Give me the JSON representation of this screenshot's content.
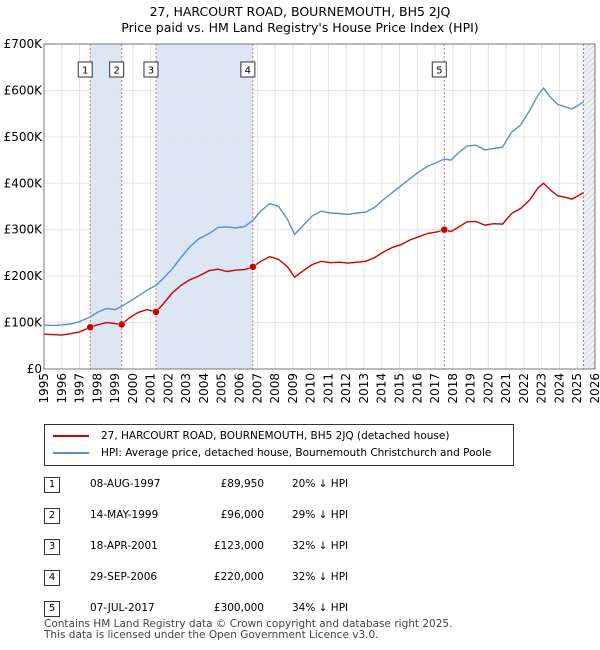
{
  "title_line1": "27, HARCOURT ROAD, BOURNEMOUTH, BH5 2JQ",
  "title_line2": "Price paid vs. HM Land Registry's House Price Index (HPI)",
  "colors": {
    "property": "#cc0000",
    "hpi": "#5b8fc7",
    "shade": "#dce6f5"
  },
  "chart_data": {
    "type": "line",
    "xlim": [
      1995,
      2026
    ],
    "ylim": [
      0,
      700000
    ],
    "y_ticks": [
      {
        "value": 0,
        "label": "£0"
      },
      {
        "value": 100000,
        "label": "£100K"
      },
      {
        "value": 200000,
        "label": "£200K"
      },
      {
        "value": 300000,
        "label": "£300K"
      },
      {
        "value": 400000,
        "label": "£400K"
      },
      {
        "value": 500000,
        "label": "£500K"
      },
      {
        "value": 600000,
        "label": "£600K"
      },
      {
        "value": 700000,
        "label": "£700K"
      }
    ],
    "x_ticks": [
      "1995",
      "1996",
      "1997",
      "1998",
      "1999",
      "2000",
      "2001",
      "2002",
      "2003",
      "2004",
      "2005",
      "2006",
      "2007",
      "2008",
      "2009",
      "2010",
      "2011",
      "2012",
      "2013",
      "2014",
      "2015",
      "2016",
      "2017",
      "2018",
      "2019",
      "2020",
      "2021",
      "2022",
      "2023",
      "2024",
      "2025",
      "2026"
    ],
    "data_end": 2025.35,
    "series": [
      {
        "name": "27, HARCOURT ROAD, BOURNEMOUTH, BH5 2JQ (detached house)",
        "key": "property",
        "points": [
          [
            1995.0,
            75000
          ],
          [
            1995.5,
            74000
          ],
          [
            1996.0,
            73000
          ],
          [
            1996.5,
            76000
          ],
          [
            1997.0,
            80000
          ],
          [
            1997.6,
            89950
          ],
          [
            1998.0,
            95000
          ],
          [
            1998.5,
            100000
          ],
          [
            1999.0,
            98000
          ],
          [
            1999.37,
            96000
          ],
          [
            1999.8,
            110000
          ],
          [
            2000.3,
            122000
          ],
          [
            2000.8,
            128000
          ],
          [
            2001.3,
            123000
          ],
          [
            2001.7,
            140000
          ],
          [
            2002.2,
            163000
          ],
          [
            2002.7,
            180000
          ],
          [
            2003.2,
            192000
          ],
          [
            2003.7,
            200000
          ],
          [
            2004.3,
            212000
          ],
          [
            2004.8,
            215000
          ],
          [
            2005.3,
            210000
          ],
          [
            2005.8,
            213000
          ],
          [
            2006.3,
            214000
          ],
          [
            2006.75,
            220000
          ],
          [
            2007.2,
            232000
          ],
          [
            2007.7,
            242000
          ],
          [
            2008.2,
            236000
          ],
          [
            2008.7,
            220000
          ],
          [
            2009.1,
            198000
          ],
          [
            2009.6,
            212000
          ],
          [
            2010.1,
            225000
          ],
          [
            2010.6,
            232000
          ],
          [
            2011.1,
            229000
          ],
          [
            2011.6,
            230000
          ],
          [
            2012.1,
            228000
          ],
          [
            2012.6,
            230000
          ],
          [
            2013.1,
            232000
          ],
          [
            2013.6,
            240000
          ],
          [
            2014.1,
            252000
          ],
          [
            2014.6,
            262000
          ],
          [
            2015.1,
            268000
          ],
          [
            2015.6,
            278000
          ],
          [
            2016.1,
            285000
          ],
          [
            2016.6,
            292000
          ],
          [
            2017.1,
            295000
          ],
          [
            2017.52,
            300000
          ],
          [
            2017.9,
            296000
          ],
          [
            2018.3,
            305000
          ],
          [
            2018.8,
            317000
          ],
          [
            2019.3,
            318000
          ],
          [
            2019.8,
            310000
          ],
          [
            2020.3,
            313000
          ],
          [
            2020.8,
            312000
          ],
          [
            2021.3,
            335000
          ],
          [
            2021.8,
            345000
          ],
          [
            2022.3,
            363000
          ],
          [
            2022.8,
            390000
          ],
          [
            2023.1,
            400000
          ],
          [
            2023.5,
            385000
          ],
          [
            2023.9,
            373000
          ],
          [
            2024.3,
            370000
          ],
          [
            2024.7,
            366000
          ],
          [
            2025.0,
            372000
          ],
          [
            2025.35,
            380000
          ]
        ]
      },
      {
        "name": "HPI: Average price, detached house, Bournemouth Christchurch and Poole",
        "key": "hpi",
        "points": [
          [
            1995.0,
            95000
          ],
          [
            1995.5,
            94000
          ],
          [
            1996.0,
            95000
          ],
          [
            1996.5,
            97000
          ],
          [
            1997.0,
            102000
          ],
          [
            1997.6,
            112000
          ],
          [
            1998.0,
            122000
          ],
          [
            1998.5,
            130000
          ],
          [
            1999.0,
            128000
          ],
          [
            1999.37,
            135000
          ],
          [
            1999.8,
            145000
          ],
          [
            2000.3,
            157000
          ],
          [
            2000.8,
            170000
          ],
          [
            2001.3,
            180000
          ],
          [
            2001.7,
            195000
          ],
          [
            2002.2,
            215000
          ],
          [
            2002.7,
            240000
          ],
          [
            2003.2,
            263000
          ],
          [
            2003.7,
            280000
          ],
          [
            2004.3,
            292000
          ],
          [
            2004.8,
            305000
          ],
          [
            2005.3,
            306000
          ],
          [
            2005.8,
            304000
          ],
          [
            2006.3,
            307000
          ],
          [
            2006.75,
            320000
          ],
          [
            2007.2,
            340000
          ],
          [
            2007.7,
            356000
          ],
          [
            2008.2,
            350000
          ],
          [
            2008.7,
            322000
          ],
          [
            2009.1,
            290000
          ],
          [
            2009.6,
            310000
          ],
          [
            2010.1,
            330000
          ],
          [
            2010.6,
            340000
          ],
          [
            2011.1,
            336000
          ],
          [
            2011.6,
            335000
          ],
          [
            2012.1,
            333000
          ],
          [
            2012.6,
            336000
          ],
          [
            2013.1,
            338000
          ],
          [
            2013.6,
            348000
          ],
          [
            2014.1,
            365000
          ],
          [
            2014.6,
            380000
          ],
          [
            2015.1,
            395000
          ],
          [
            2015.6,
            410000
          ],
          [
            2016.1,
            425000
          ],
          [
            2016.6,
            437000
          ],
          [
            2017.1,
            445000
          ],
          [
            2017.52,
            452000
          ],
          [
            2017.9,
            450000
          ],
          [
            2018.3,
            465000
          ],
          [
            2018.8,
            480000
          ],
          [
            2019.3,
            482000
          ],
          [
            2019.8,
            472000
          ],
          [
            2020.3,
            475000
          ],
          [
            2020.8,
            478000
          ],
          [
            2021.3,
            510000
          ],
          [
            2021.8,
            525000
          ],
          [
            2022.3,
            555000
          ],
          [
            2022.8,
            590000
          ],
          [
            2023.1,
            605000
          ],
          [
            2023.5,
            585000
          ],
          [
            2023.9,
            570000
          ],
          [
            2024.3,
            565000
          ],
          [
            2024.7,
            560000
          ],
          [
            2025.0,
            567000
          ],
          [
            2025.35,
            575000
          ]
        ]
      }
    ],
    "sales": [
      {
        "id": "1",
        "x": 1997.6,
        "price": 89950
      },
      {
        "id": "2",
        "x": 1999.37,
        "price": 96000
      },
      {
        "id": "3",
        "x": 2001.3,
        "price": 123000
      },
      {
        "id": "4",
        "x": 2006.75,
        "price": 220000
      },
      {
        "id": "5",
        "x": 2017.52,
        "price": 300000
      }
    ],
    "shaded_ranges": [
      [
        1997.6,
        1999.37
      ],
      [
        2001.3,
        2006.75
      ]
    ]
  },
  "legend": {
    "property_label": "27, HARCOURT ROAD, BOURNEMOUTH, BH5 2JQ (detached house)",
    "hpi_label": "HPI: Average price, detached house, Bournemouth Christchurch and Poole"
  },
  "transactions": [
    {
      "num": "1",
      "date": "08-AUG-1997",
      "price": "£89,950",
      "hpi": "20% ↓ HPI"
    },
    {
      "num": "2",
      "date": "14-MAY-1999",
      "price": "£96,000",
      "hpi": "29% ↓ HPI"
    },
    {
      "num": "3",
      "date": "18-APR-2001",
      "price": "£123,000",
      "hpi": "32% ↓ HPI"
    },
    {
      "num": "4",
      "date": "29-SEP-2006",
      "price": "£220,000",
      "hpi": "32% ↓ HPI"
    },
    {
      "num": "5",
      "date": "07-JUL-2017",
      "price": "£300,000",
      "hpi": "34% ↓ HPI"
    }
  ],
  "footer": {
    "line1": "Contains HM Land Registry data © Crown copyright and database right 2025.",
    "line2": "This data is licensed under the Open Government Licence v3.0."
  }
}
